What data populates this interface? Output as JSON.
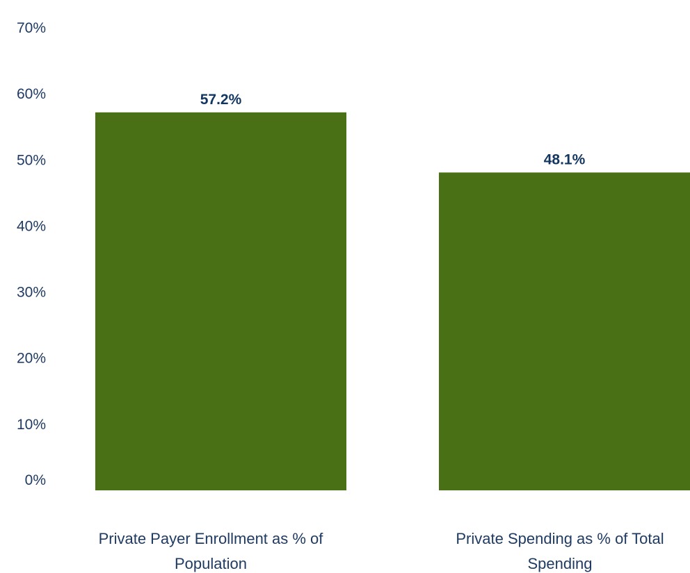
{
  "chart_data": {
    "type": "bar",
    "categories": [
      [
        "Private Payer Enrollment as % of",
        "Population"
      ],
      [
        "Private Spending as % of Total",
        "Spending"
      ]
    ],
    "values": [
      57.2,
      48.1
    ],
    "data_labels": [
      "57.2%",
      "48.1%"
    ],
    "ylim": [
      0,
      70
    ],
    "yticks": [
      0,
      10,
      20,
      30,
      40,
      50,
      60,
      70
    ],
    "ytick_labels": [
      "0%",
      "10%",
      "20%",
      "30%",
      "40%",
      "50%",
      "60%",
      "70%"
    ],
    "grid": false,
    "legend": "none",
    "colors": {
      "bar": "#4a7015",
      "tick_text": "#1f3b63",
      "data_label_text": "#12365f",
      "category_text": "#1f3b63"
    }
  }
}
